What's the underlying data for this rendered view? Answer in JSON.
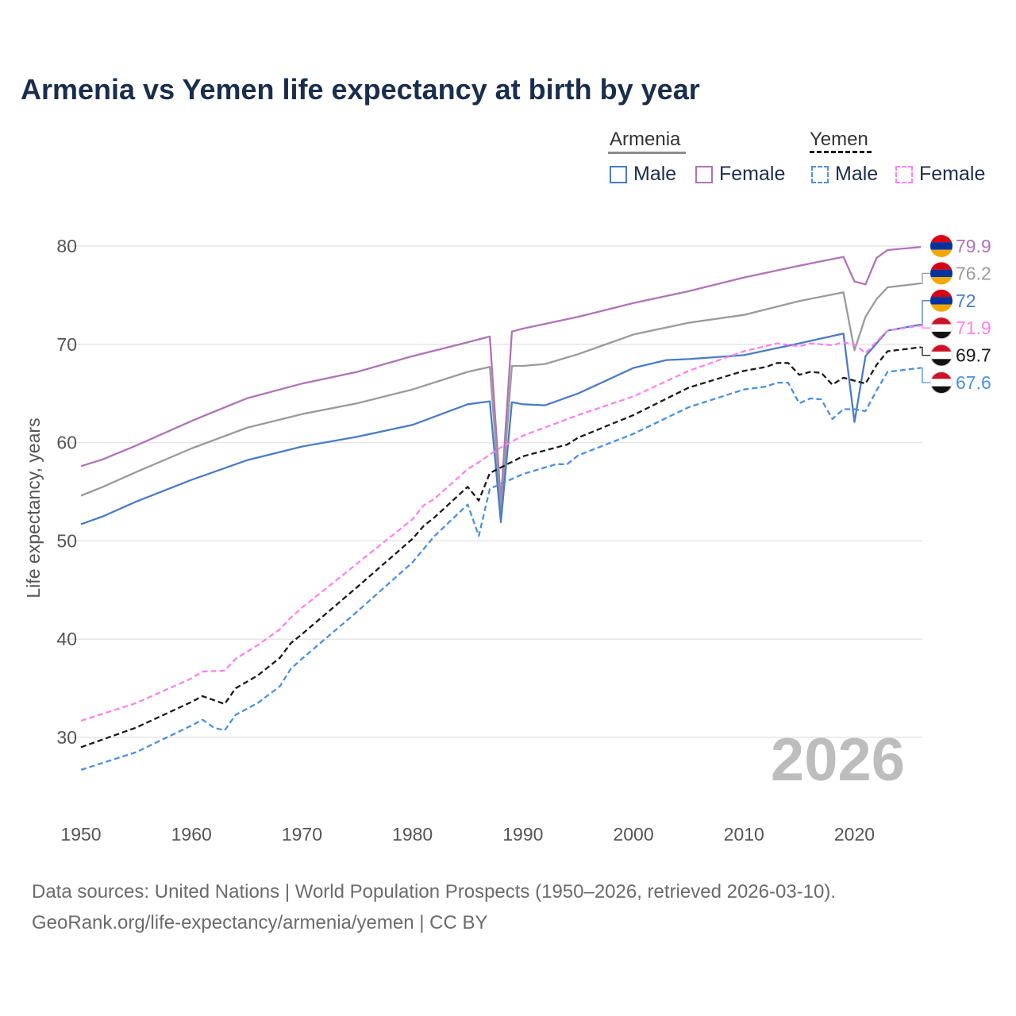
{
  "title": "Armenia vs Yemen life expectancy at birth by year",
  "legend": {
    "armenia": {
      "label": "Armenia",
      "male": "Male",
      "female": "Female"
    },
    "yemen": {
      "label": "Yemen",
      "male": "Male",
      "female": "Female"
    }
  },
  "source": {
    "line1": "Data sources: United Nations | World Population Prospects (1950–2026, retrieved 2026-03-10).",
    "line2": "GeoRank.org/life-expectancy/armenia/yemen | CC BY"
  },
  "chart_data": {
    "type": "line",
    "ylabel": "Life expectancy, years",
    "xlabel": "",
    "xlim": [
      1950,
      2026
    ],
    "ylim": [
      25,
      83
    ],
    "yticks": [
      30,
      40,
      50,
      60,
      70,
      80
    ],
    "xticks": [
      1950,
      1960,
      1970,
      1980,
      1990,
      2000,
      2010,
      2020
    ],
    "year_label": "2026",
    "series": [
      {
        "name": "Armenia Female",
        "color": "#b072b8",
        "dash": false,
        "end_label": "79.9",
        "flag": "armenia",
        "points": [
          [
            1950,
            57.6
          ],
          [
            1952,
            58.3
          ],
          [
            1955,
            59.7
          ],
          [
            1960,
            62.2
          ],
          [
            1965,
            64.5
          ],
          [
            1970,
            66.0
          ],
          [
            1975,
            67.2
          ],
          [
            1980,
            68.8
          ],
          [
            1985,
            70.2
          ],
          [
            1987,
            70.8
          ],
          [
            1988,
            54.0
          ],
          [
            1989,
            71.3
          ],
          [
            1990,
            71.6
          ],
          [
            1995,
            72.8
          ],
          [
            2000,
            74.2
          ],
          [
            2005,
            75.4
          ],
          [
            2010,
            76.8
          ],
          [
            2015,
            78.0
          ],
          [
            2019,
            78.9
          ],
          [
            2020,
            76.4
          ],
          [
            2021,
            76.1
          ],
          [
            2022,
            78.8
          ],
          [
            2023,
            79.6
          ],
          [
            2026,
            79.9
          ]
        ]
      },
      {
        "name": "Armenia Total",
        "color": "#9a9a9a",
        "dash": false,
        "end_label": "76.2",
        "flag": "armenia",
        "points": [
          [
            1950,
            54.6
          ],
          [
            1952,
            55.5
          ],
          [
            1955,
            57.0
          ],
          [
            1960,
            59.4
          ],
          [
            1965,
            61.5
          ],
          [
            1970,
            62.9
          ],
          [
            1975,
            64.0
          ],
          [
            1980,
            65.4
          ],
          [
            1985,
            67.2
          ],
          [
            1987,
            67.7
          ],
          [
            1988,
            53.0
          ],
          [
            1989,
            67.8
          ],
          [
            1990,
            67.8
          ],
          [
            1992,
            68.0
          ],
          [
            1995,
            69.0
          ],
          [
            2000,
            71.0
          ],
          [
            2005,
            72.2
          ],
          [
            2010,
            73.0
          ],
          [
            2015,
            74.4
          ],
          [
            2019,
            75.3
          ],
          [
            2020,
            69.4
          ],
          [
            2021,
            72.8
          ],
          [
            2022,
            74.6
          ],
          [
            2023,
            75.8
          ],
          [
            2026,
            76.2
          ]
        ]
      },
      {
        "name": "Armenia Male",
        "color": "#4a7cc4",
        "dash": false,
        "end_label": "72",
        "flag": "armenia",
        "points": [
          [
            1950,
            51.7
          ],
          [
            1952,
            52.5
          ],
          [
            1955,
            54.0
          ],
          [
            1960,
            56.2
          ],
          [
            1965,
            58.2
          ],
          [
            1970,
            59.6
          ],
          [
            1975,
            60.6
          ],
          [
            1980,
            61.8
          ],
          [
            1985,
            63.9
          ],
          [
            1987,
            64.2
          ],
          [
            1988,
            51.9
          ],
          [
            1989,
            64.1
          ],
          [
            1990,
            63.9
          ],
          [
            1992,
            63.8
          ],
          [
            1995,
            65.0
          ],
          [
            2000,
            67.6
          ],
          [
            2003,
            68.4
          ],
          [
            2005,
            68.5
          ],
          [
            2010,
            68.9
          ],
          [
            2015,
            70.1
          ],
          [
            2019,
            71.1
          ],
          [
            2020,
            62.1
          ],
          [
            2021,
            68.8
          ],
          [
            2023,
            71.4
          ],
          [
            2026,
            72.0
          ]
        ]
      },
      {
        "name": "Yemen Female",
        "color": "#ff80f0",
        "dash": true,
        "end_label": "71.9",
        "flag": "yemen",
        "points": [
          [
            1950,
            31.7
          ],
          [
            1955,
            33.5
          ],
          [
            1960,
            36.0
          ],
          [
            1961,
            36.7
          ],
          [
            1963,
            36.8
          ],
          [
            1964,
            38.0
          ],
          [
            1966,
            39.4
          ],
          [
            1968,
            41.0
          ],
          [
            1969,
            42.2
          ],
          [
            1970,
            43.2
          ],
          [
            1975,
            47.7
          ],
          [
            1980,
            52.2
          ],
          [
            1981,
            53.6
          ],
          [
            1982,
            54.3
          ],
          [
            1985,
            57.3
          ],
          [
            1986,
            58.0
          ],
          [
            1987,
            58.8
          ],
          [
            1988,
            59.5
          ],
          [
            1990,
            60.7
          ],
          [
            1995,
            62.8
          ],
          [
            2000,
            64.7
          ],
          [
            2005,
            67.3
          ],
          [
            2010,
            69.3
          ],
          [
            2013,
            70.1
          ],
          [
            2015,
            69.8
          ],
          [
            2016,
            70.1
          ],
          [
            2018,
            69.9
          ],
          [
            2019,
            70.2
          ],
          [
            2020,
            70.0
          ],
          [
            2021,
            69.1
          ],
          [
            2022,
            70.3
          ],
          [
            2023,
            71.4
          ],
          [
            2026,
            71.9
          ]
        ]
      },
      {
        "name": "Yemen Total",
        "color": "#1a1a1a",
        "dash": true,
        "end_label": "69.7",
        "flag": "yemen",
        "points": [
          [
            1950,
            29.0
          ],
          [
            1955,
            31.0
          ],
          [
            1960,
            33.6
          ],
          [
            1961,
            34.2
          ],
          [
            1963,
            33.4
          ],
          [
            1964,
            35.0
          ],
          [
            1966,
            36.3
          ],
          [
            1968,
            38.1
          ],
          [
            1969,
            39.6
          ],
          [
            1970,
            40.5
          ],
          [
            1975,
            45.3
          ],
          [
            1980,
            50.2
          ],
          [
            1981,
            51.5
          ],
          [
            1982,
            52.4
          ],
          [
            1985,
            55.5
          ],
          [
            1986,
            54.1
          ],
          [
            1987,
            56.9
          ],
          [
            1990,
            58.6
          ],
          [
            1994,
            59.8
          ],
          [
            1995,
            60.5
          ],
          [
            2000,
            62.8
          ],
          [
            2005,
            65.6
          ],
          [
            2010,
            67.3
          ],
          [
            2012,
            67.7
          ],
          [
            2013,
            68.1
          ],
          [
            2014,
            68.1
          ],
          [
            2015,
            66.9
          ],
          [
            2016,
            67.2
          ],
          [
            2017,
            67.1
          ],
          [
            2018,
            65.9
          ],
          [
            2019,
            66.6
          ],
          [
            2020,
            66.3
          ],
          [
            2021,
            66.0
          ],
          [
            2022,
            67.9
          ],
          [
            2023,
            69.3
          ],
          [
            2026,
            69.7
          ]
        ]
      },
      {
        "name": "Yemen Male",
        "color": "#4a90e2",
        "dash": true,
        "end_label": "67.6",
        "flag": "yemen",
        "points": [
          [
            1950,
            26.7
          ],
          [
            1955,
            28.5
          ],
          [
            1960,
            31.2
          ],
          [
            1961,
            31.8
          ],
          [
            1962,
            31.0
          ],
          [
            1963,
            30.7
          ],
          [
            1964,
            32.3
          ],
          [
            1966,
            33.5
          ],
          [
            1968,
            35.2
          ],
          [
            1969,
            37.0
          ],
          [
            1970,
            38.0
          ],
          [
            1975,
            42.8
          ],
          [
            1980,
            47.8
          ],
          [
            1982,
            50.5
          ],
          [
            1985,
            53.7
          ],
          [
            1986,
            50.5
          ],
          [
            1987,
            55.3
          ],
          [
            1990,
            56.8
          ],
          [
            1993,
            57.8
          ],
          [
            1994,
            57.8
          ],
          [
            1995,
            58.7
          ],
          [
            2000,
            60.9
          ],
          [
            2005,
            63.6
          ],
          [
            2010,
            65.4
          ],
          [
            2012,
            65.7
          ],
          [
            2013,
            66.1
          ],
          [
            2014,
            66.1
          ],
          [
            2015,
            64.0
          ],
          [
            2016,
            64.5
          ],
          [
            2017,
            64.4
          ],
          [
            2018,
            62.4
          ],
          [
            2019,
            63.4
          ],
          [
            2020,
            63.4
          ],
          [
            2021,
            63.2
          ],
          [
            2022,
            65.3
          ],
          [
            2023,
            67.2
          ],
          [
            2026,
            67.6
          ]
        ]
      }
    ]
  }
}
